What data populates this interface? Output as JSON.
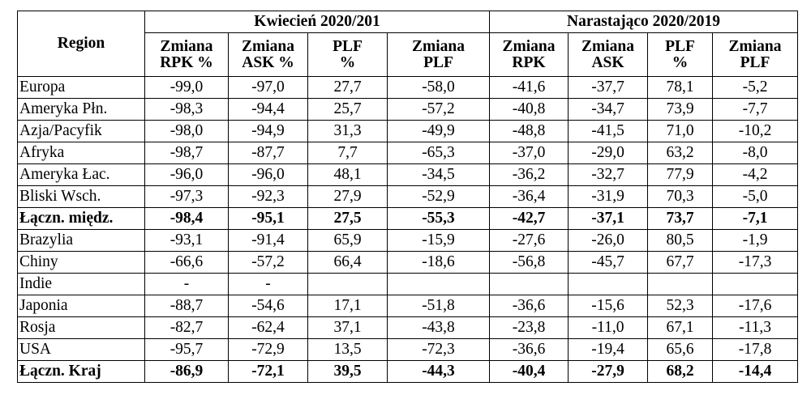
{
  "table": {
    "region_header": "Region",
    "groups": [
      {
        "label": "Kwiecień 2020/201"
      },
      {
        "label": "Narastająco  2020/2019"
      }
    ],
    "subheaders": [
      {
        "line1": "Zmiana",
        "line2": "RPK %"
      },
      {
        "line1": "Zmiana",
        "line2": "ASK %"
      },
      {
        "line1": "PLF",
        "line2": "%"
      },
      {
        "line1": "Zmiana",
        "line2": "PLF"
      },
      {
        "line1": "Zmiana",
        "line2": "RPK"
      },
      {
        "line1": "Zmiana",
        "line2": "ASK"
      },
      {
        "line1": "PLF",
        "line2": "%"
      },
      {
        "line1": "Zmiana",
        "line2": "PLF"
      }
    ],
    "rows": [
      {
        "region": "Europa",
        "bold": false,
        "values": [
          "-99,0",
          "-97,0",
          "27,7",
          "-58,0",
          "-41,6",
          "-37,7",
          "78,1",
          "-5,2"
        ]
      },
      {
        "region": "Ameryka Płn.",
        "bold": false,
        "values": [
          "-98,3",
          "-94,4",
          "25,7",
          "-57,2",
          "-40,8",
          "-34,7",
          "73,9",
          "-7,7"
        ]
      },
      {
        "region": "Azja/Pacyfik",
        "bold": false,
        "values": [
          "-98,0",
          "-94,9",
          "31,3",
          "-49,9",
          "-48,8",
          "-41,5",
          "71,0",
          "-10,2"
        ]
      },
      {
        "region": "Afryka",
        "bold": false,
        "values": [
          "-98,7",
          "-87,7",
          "7,7",
          "-65,3",
          "-37,0",
          "-29,0",
          "63,2",
          "-8,0"
        ]
      },
      {
        "region": "Ameryka Łac.",
        "bold": false,
        "values": [
          "-96,0",
          "-96,0",
          "48,1",
          "-34,5",
          "-36,2",
          "-32,7",
          "77,9",
          "-4,2"
        ]
      },
      {
        "region": "Bliski Wsch.",
        "bold": false,
        "values": [
          "-97,3",
          "-92,3",
          "27,9",
          "-52,9",
          "-36,4",
          "-31,9",
          "70,3",
          "-5,0"
        ]
      },
      {
        "region": "Łączn. międz.",
        "bold": true,
        "values": [
          "-98,4",
          "-95,1",
          "27,5",
          "-55,3",
          "-42,7",
          "-37,1",
          "73,7",
          "-7,1"
        ]
      },
      {
        "region": "Brazylia",
        "bold": false,
        "values": [
          "-93,1",
          "-91,4",
          "65,9",
          "-15,9",
          "-27,6",
          "-26,0",
          "80,5",
          "-1,9"
        ]
      },
      {
        "region": "Chiny",
        "bold": false,
        "values": [
          "-66,6",
          "-57,2",
          "66,4",
          "-18,6",
          "-56,8",
          "-45,7",
          "67,7",
          "-17,3"
        ]
      },
      {
        "region": "Indie",
        "bold": false,
        "values": [
          "-",
          "-",
          "",
          "",
          "",
          "",
          "",
          ""
        ]
      },
      {
        "region": "Japonia",
        "bold": false,
        "values": [
          "-88,7",
          "-54,6",
          "17,1",
          "-51,8",
          "-36,6",
          "-15,6",
          "52,3",
          "-17,6"
        ]
      },
      {
        "region": "Rosja",
        "bold": false,
        "values": [
          "-82,7",
          "-62,4",
          "37,1",
          "-43,8",
          "-23,8",
          "-11,0",
          "67,1",
          "-11,3"
        ]
      },
      {
        "region": "USA",
        "bold": false,
        "values": [
          "-95,7",
          "-72,9",
          "13,5",
          "-72,3",
          "-36,6",
          "-19,4",
          "65,6",
          "-17,8"
        ]
      },
      {
        "region": "Łączn. Kraj",
        "bold": true,
        "values": [
          "-86,9",
          "-72,1",
          "39,5",
          "-44,3",
          "-40,4",
          "-27,9",
          "68,2",
          "-14,4"
        ]
      }
    ]
  }
}
